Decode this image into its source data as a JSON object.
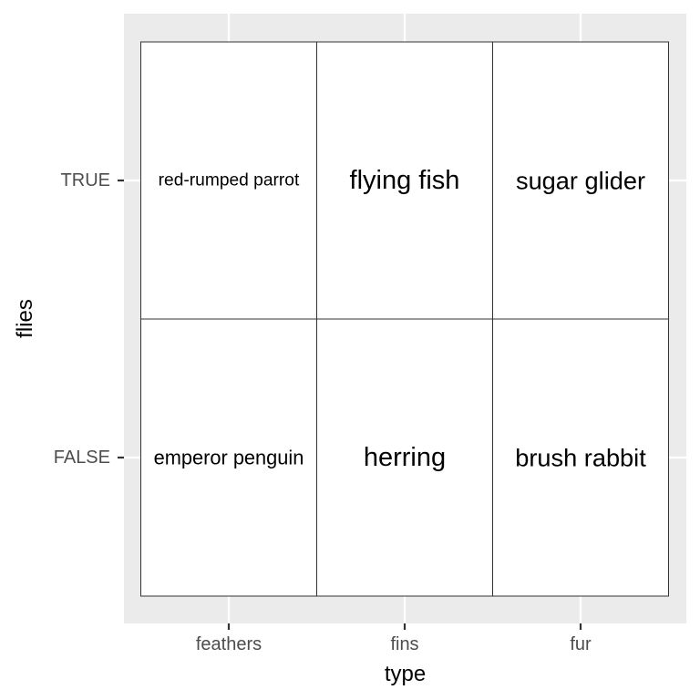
{
  "chart_data": {
    "type": "table",
    "x": [
      "feathers",
      "fins",
      "fur"
    ],
    "y": [
      "TRUE",
      "FALSE"
    ],
    "xlabel": "type",
    "ylabel": "flies",
    "cells": [
      {
        "x": "feathers",
        "y": "TRUE",
        "label": "red-rumped parrot"
      },
      {
        "x": "fins",
        "y": "TRUE",
        "label": "flying fish"
      },
      {
        "x": "fur",
        "y": "TRUE",
        "label": "sugar glider"
      },
      {
        "x": "feathers",
        "y": "FALSE",
        "label": "emperor penguin"
      },
      {
        "x": "fins",
        "y": "FALSE",
        "label": "herring"
      },
      {
        "x": "fur",
        "y": "FALSE",
        "label": "brush rabbit"
      }
    ],
    "grid": true,
    "colors": {
      "panel_background": "#ebebeb",
      "grid_line": "#ffffff",
      "tile_fill": "#ffffff",
      "tile_border": "#333333",
      "axis_text": "#4d4d4d",
      "axis_title": "#000000",
      "cell_text": "#000000"
    }
  }
}
